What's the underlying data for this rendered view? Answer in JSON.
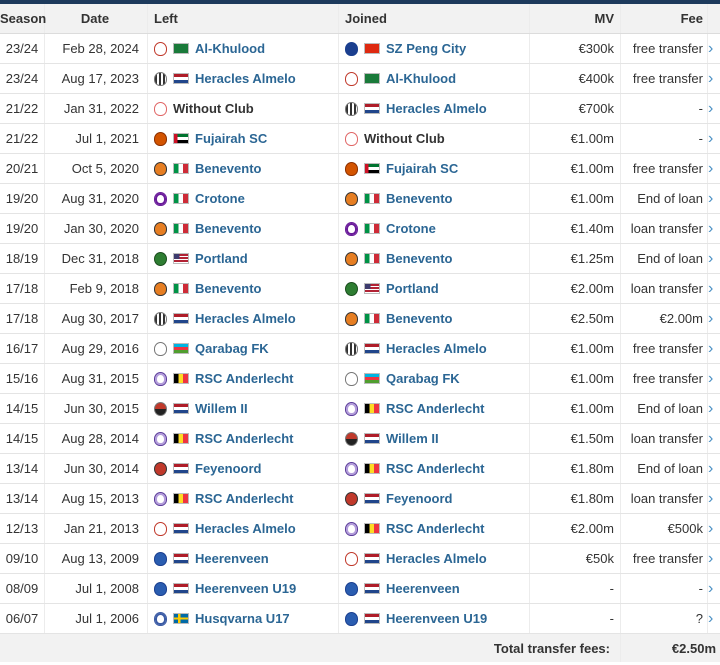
{
  "headers": {
    "season": "Season",
    "date": "Date",
    "left": "Left",
    "joined": "Joined",
    "mv": "MV",
    "fee": "Fee"
  },
  "rows": [
    {
      "season": "23/24",
      "date": "Feb 28, 2024",
      "left": {
        "name": "Al-Khulood",
        "crest": "kholood",
        "flag": "sa"
      },
      "joined": {
        "name": "SZ Peng City",
        "crest": "peng",
        "flag": "cn"
      },
      "mv": "€300k",
      "fee": "free transfer"
    },
    {
      "season": "23/24",
      "date": "Aug 17, 2023",
      "left": {
        "name": "Heracles Almelo",
        "crest": "heracles",
        "flag": "nl"
      },
      "joined": {
        "name": "Al-Khulood",
        "crest": "kholood",
        "flag": "sa"
      },
      "mv": "€400k",
      "fee": "free transfer"
    },
    {
      "season": "21/22",
      "date": "Jan 31, 2022",
      "left": {
        "name": "Without Club",
        "crest": "noclub",
        "flag": "none"
      },
      "joined": {
        "name": "Heracles Almelo",
        "crest": "heracles",
        "flag": "nl"
      },
      "mv": "€700k",
      "fee": "-"
    },
    {
      "season": "21/22",
      "date": "Jul 1, 2021",
      "left": {
        "name": "Fujairah SC",
        "crest": "fujairah",
        "flag": "ae"
      },
      "joined": {
        "name": "Without Club",
        "crest": "noclub",
        "flag": "none"
      },
      "mv": "€1.00m",
      "fee": "-"
    },
    {
      "season": "20/21",
      "date": "Oct 5, 2020",
      "left": {
        "name": "Benevento",
        "crest": "benevento",
        "flag": "it"
      },
      "joined": {
        "name": "Fujairah SC",
        "crest": "fujairah",
        "flag": "ae"
      },
      "mv": "€1.00m",
      "fee": "free transfer"
    },
    {
      "season": "19/20",
      "date": "Aug 31, 2020",
      "left": {
        "name": "Crotone",
        "crest": "crotone",
        "flag": "it"
      },
      "joined": {
        "name": "Benevento",
        "crest": "benevento",
        "flag": "it"
      },
      "mv": "€1.00m",
      "fee": "End of loan"
    },
    {
      "season": "19/20",
      "date": "Jan 30, 2020",
      "left": {
        "name": "Benevento",
        "crest": "benevento",
        "flag": "it"
      },
      "joined": {
        "name": "Crotone",
        "crest": "crotone",
        "flag": "it"
      },
      "mv": "€1.40m",
      "fee": "loan transfer"
    },
    {
      "season": "18/19",
      "date": "Dec 31, 2018",
      "left": {
        "name": "Portland",
        "crest": "portland",
        "flag": "us"
      },
      "joined": {
        "name": "Benevento",
        "crest": "benevento",
        "flag": "it"
      },
      "mv": "€1.25m",
      "fee": "End of loan"
    },
    {
      "season": "17/18",
      "date": "Feb 9, 2018",
      "left": {
        "name": "Benevento",
        "crest": "benevento",
        "flag": "it"
      },
      "joined": {
        "name": "Portland",
        "crest": "portland",
        "flag": "us"
      },
      "mv": "€2.00m",
      "fee": "loan transfer"
    },
    {
      "season": "17/18",
      "date": "Aug 30, 2017",
      "left": {
        "name": "Heracles Almelo",
        "crest": "heracles",
        "flag": "nl"
      },
      "joined": {
        "name": "Benevento",
        "crest": "benevento",
        "flag": "it"
      },
      "mv": "€2.50m",
      "fee": "€2.00m"
    },
    {
      "season": "16/17",
      "date": "Aug 29, 2016",
      "left": {
        "name": "Qarabag FK",
        "crest": "qarabag",
        "flag": "az"
      },
      "joined": {
        "name": "Heracles Almelo",
        "crest": "heracles",
        "flag": "nl"
      },
      "mv": "€1.00m",
      "fee": "free transfer"
    },
    {
      "season": "15/16",
      "date": "Aug 31, 2015",
      "left": {
        "name": "RSC Anderlecht",
        "crest": "anderlecht",
        "flag": "be"
      },
      "joined": {
        "name": "Qarabag FK",
        "crest": "qarabag",
        "flag": "az"
      },
      "mv": "€1.00m",
      "fee": "free transfer"
    },
    {
      "season": "14/15",
      "date": "Jun 30, 2015",
      "left": {
        "name": "Willem II",
        "crest": "willem",
        "flag": "nl"
      },
      "joined": {
        "name": "RSC Anderlecht",
        "crest": "anderlecht",
        "flag": "be"
      },
      "mv": "€1.00m",
      "fee": "End of loan"
    },
    {
      "season": "14/15",
      "date": "Aug 28, 2014",
      "left": {
        "name": "RSC Anderlecht",
        "crest": "anderlecht",
        "flag": "be"
      },
      "joined": {
        "name": "Willem II",
        "crest": "willem",
        "flag": "nl"
      },
      "mv": "€1.50m",
      "fee": "loan transfer"
    },
    {
      "season": "13/14",
      "date": "Jun 30, 2014",
      "left": {
        "name": "Feyenoord",
        "crest": "feyenoord",
        "flag": "nl"
      },
      "joined": {
        "name": "RSC Anderlecht",
        "crest": "anderlecht",
        "flag": "be"
      },
      "mv": "€1.80m",
      "fee": "End of loan"
    },
    {
      "season": "13/14",
      "date": "Aug 15, 2013",
      "left": {
        "name": "RSC Anderlecht",
        "crest": "anderlecht",
        "flag": "be"
      },
      "joined": {
        "name": "Feyenoord",
        "crest": "feyenoord",
        "flag": "nl"
      },
      "mv": "€1.80m",
      "fee": "loan transfer"
    },
    {
      "season": "12/13",
      "date": "Jan 21, 2013",
      "left": {
        "name": "Heracles Almelo",
        "crest": "heracles-old",
        "flag": "nl"
      },
      "joined": {
        "name": "RSC Anderlecht",
        "crest": "anderlecht",
        "flag": "be"
      },
      "mv": "€2.00m",
      "fee": "€500k"
    },
    {
      "season": "09/10",
      "date": "Aug 13, 2009",
      "left": {
        "name": "Heerenveen",
        "crest": "heerenveen",
        "flag": "nl"
      },
      "joined": {
        "name": "Heracles Almelo",
        "crest": "heracles-old",
        "flag": "nl"
      },
      "mv": "€50k",
      "fee": "free transfer"
    },
    {
      "season": "08/09",
      "date": "Jul 1, 2008",
      "left": {
        "name": "Heerenveen U19",
        "crest": "heerenveen",
        "flag": "nl"
      },
      "joined": {
        "name": "Heerenveen",
        "crest": "heerenveen",
        "flag": "nl"
      },
      "mv": "-",
      "fee": "-"
    },
    {
      "season": "06/07",
      "date": "Jul 1, 2006",
      "left": {
        "name": "Husqvarna U17",
        "crest": "husqvarna",
        "flag": "se"
      },
      "joined": {
        "name": "Heerenveen U19",
        "crest": "heerenveen",
        "flag": "nl"
      },
      "mv": "-",
      "fee": "?"
    }
  ],
  "footer": {
    "label": "Total transfer fees:",
    "value": "€2.50m"
  },
  "icons": {
    "row_arrow": "chevron-right-icon"
  },
  "colors": {
    "club_link": "#2b6694",
    "arrow": "#4a90c4",
    "header_bg": "#f2f2f2",
    "top_bar": "#1d3a5c"
  }
}
